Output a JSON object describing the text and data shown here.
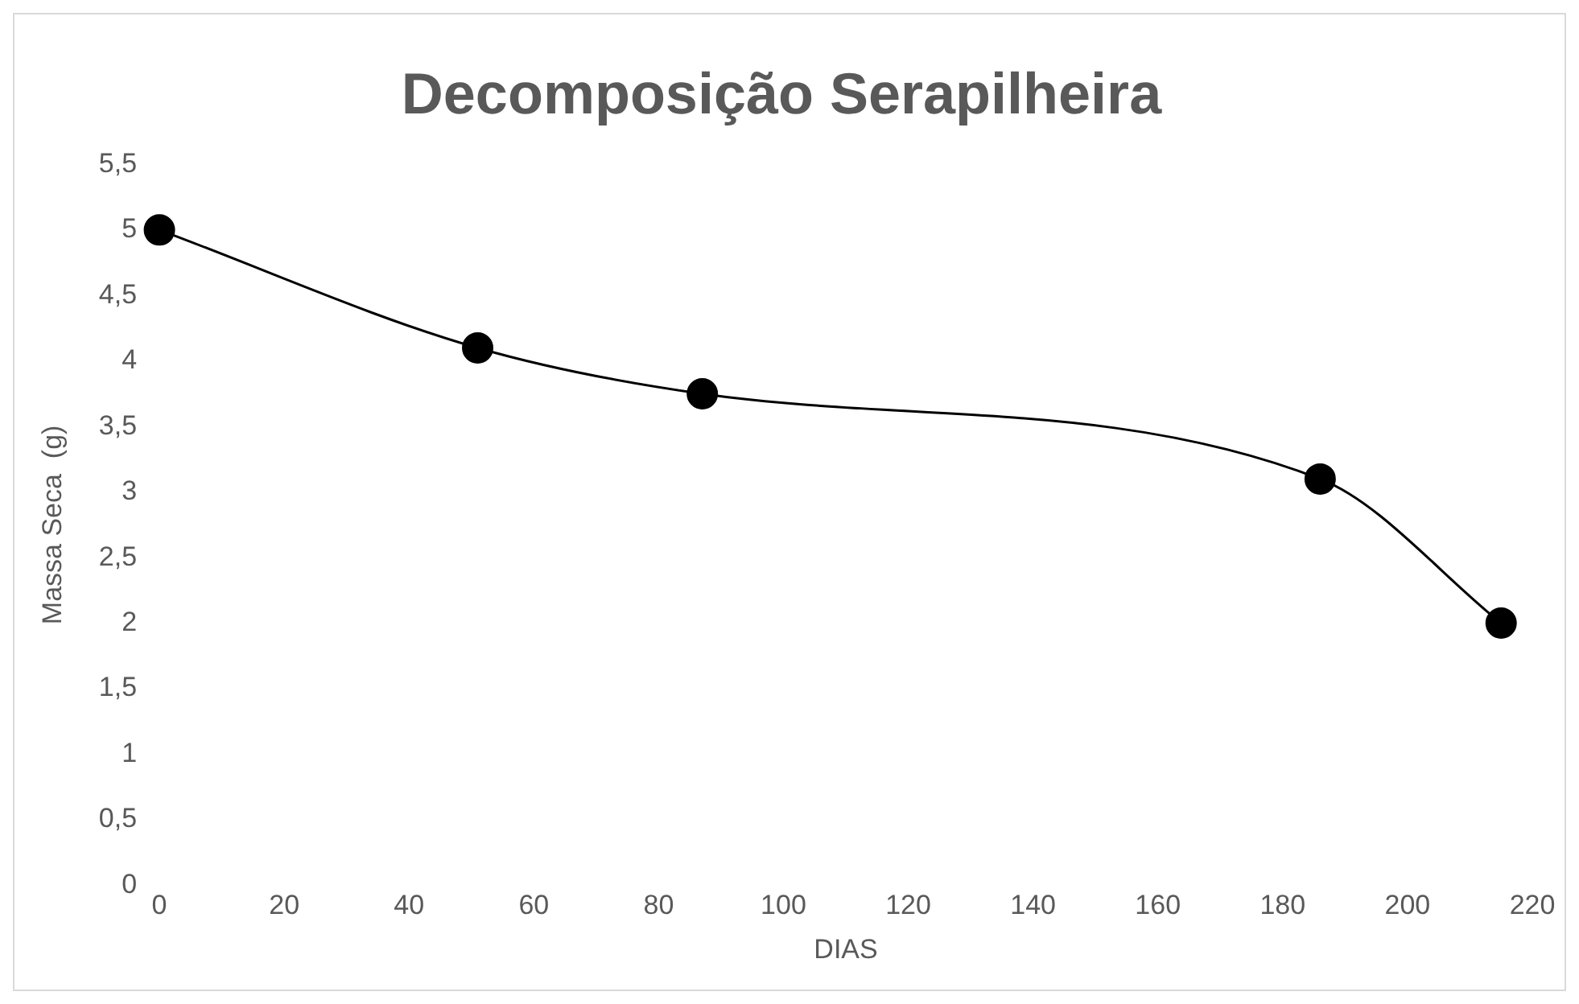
{
  "chart_data": {
    "type": "line",
    "title": "Decomposição Serapilheira",
    "xlabel": "DIAS",
    "ylabel": "Massa Seca  (g)",
    "x": [
      0,
      51,
      87,
      186,
      215
    ],
    "series": [
      {
        "color": "#000000",
        "values": [
          5,
          4.1,
          3.75,
          3.1,
          2
        ]
      }
    ],
    "xlim": [
      0,
      220
    ],
    "xticks": [
      0,
      20,
      40,
      60,
      80,
      100,
      120,
      140,
      160,
      180,
      200,
      220
    ],
    "ylim": [
      0,
      5.5
    ],
    "yticks": [
      {
        "value": 0,
        "label": "0"
      },
      {
        "value": 0.5,
        "label": "0,5"
      },
      {
        "value": 1,
        "label": "1"
      },
      {
        "value": 1.5,
        "label": "1,5"
      },
      {
        "value": 2,
        "label": "2"
      },
      {
        "value": 2.5,
        "label": "2,5"
      },
      {
        "value": 3,
        "label": "3"
      },
      {
        "value": 3.5,
        "label": "3,5"
      },
      {
        "value": 4,
        "label": "4"
      },
      {
        "value": 4.5,
        "label": "4,5"
      },
      {
        "value": 5,
        "label": "5"
      },
      {
        "value": 5.5,
        "label": "5,5"
      }
    ],
    "grid": false,
    "legend": false,
    "marker": "circle",
    "line_style": "solid"
  }
}
